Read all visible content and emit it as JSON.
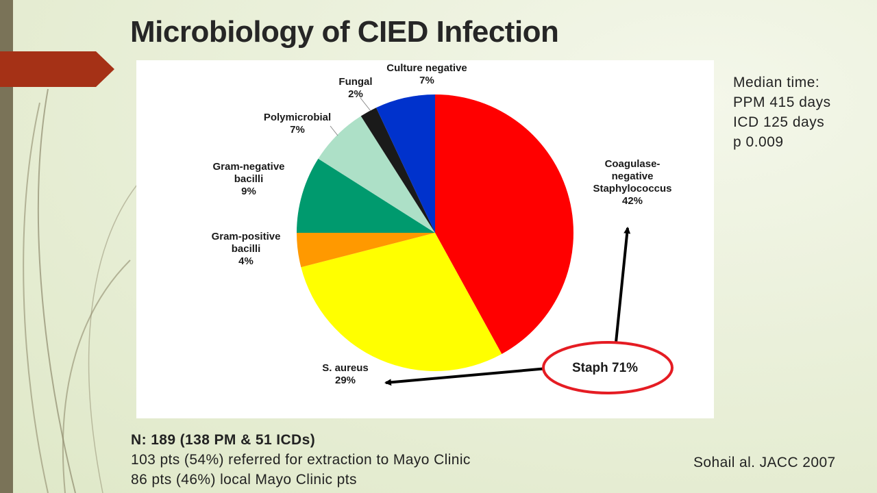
{
  "slide": {
    "title": "Microbiology of CIED Infection",
    "accent_color": "#a53116",
    "bar_color": "#7a7358"
  },
  "chart_data": {
    "type": "pie",
    "slices": [
      {
        "label": [
          "Coagulase-",
          "negative",
          "Staphylococcus"
        ],
        "pct_label": "42%",
        "value": 42,
        "color": "#ff0000"
      },
      {
        "label": [
          "S. aureus"
        ],
        "pct_label": "29%",
        "value": 29,
        "color": "#ffff00"
      },
      {
        "label": [
          "Gram-positive",
          "bacilli"
        ],
        "pct_label": "4%",
        "value": 4,
        "color": "#ff9900"
      },
      {
        "label": [
          "Gram-negative",
          "bacilli"
        ],
        "pct_label": "9%",
        "value": 9,
        "color": "#009a6e"
      },
      {
        "label": [
          "Polymicrobial"
        ],
        "pct_label": "7%",
        "value": 7,
        "color": "#ade0c7"
      },
      {
        "label": [
          "Fungal"
        ],
        "pct_label": "2%",
        "value": 2,
        "color": "#1a1a1a"
      },
      {
        "label": [
          "Culture negative"
        ],
        "pct_label": "7%",
        "value": 7,
        "color": "#0032cc"
      }
    ],
    "annotation": {
      "text": "Staph 71%",
      "color": "#e51c23"
    }
  },
  "median_time": {
    "heading": "Median time:",
    "ppm": "PPM 415 days",
    "icd": "ICD 125 days",
    "p": "p  0.009"
  },
  "footer": {
    "line1": "N: 189 (138 PM & 51 ICDs)",
    "line2": "103 pts (54%) referred for extraction to Mayo Clinic",
    "line3": "86 pts (46%) local Mayo Clinic pts"
  },
  "citation": "Sohail al. JACC 2007"
}
